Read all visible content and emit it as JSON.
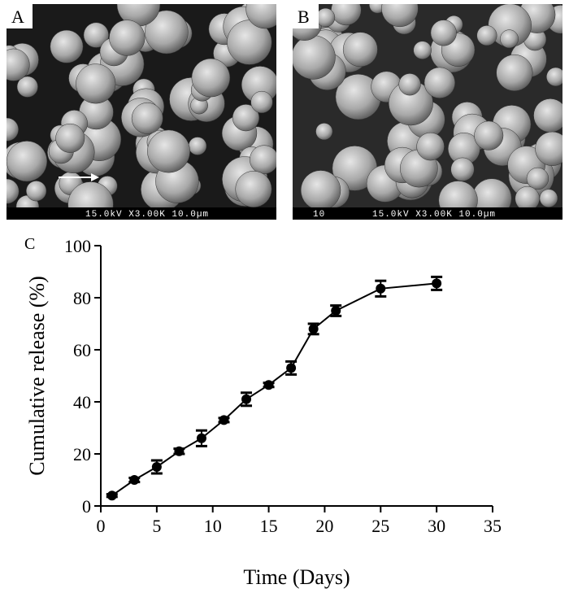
{
  "panels": [
    {
      "label": "A",
      "caption": "15.0kV X3.00K 10.0µm"
    },
    {
      "label": "B",
      "number": "10",
      "caption": "15.0kV X3.00K 10.0µm"
    }
  ],
  "chart_data": {
    "type": "line",
    "label": "C",
    "x_label": "Time (Days)",
    "y_label": "Cumulative release (%)",
    "xlim": [
      0,
      35
    ],
    "xticks": [
      0,
      5,
      10,
      15,
      20,
      25,
      30,
      35
    ],
    "ylim": [
      0,
      100
    ],
    "yticks": [
      0,
      20,
      40,
      60,
      80,
      100
    ],
    "x": [
      1,
      3,
      5,
      7,
      9,
      11,
      13,
      15,
      17,
      19,
      21,
      25,
      30
    ],
    "series": [
      {
        "color": "#000000",
        "values": [
          4,
          10,
          15,
          21,
          26,
          33,
          41,
          46.5,
          53,
          68,
          75,
          83.5,
          85.5
        ],
        "errors": [
          0.5,
          0.8,
          2.5,
          1,
          3,
          0.8,
          2.5,
          0.8,
          2.5,
          2,
          2,
          3,
          2.5
        ]
      }
    ]
  }
}
